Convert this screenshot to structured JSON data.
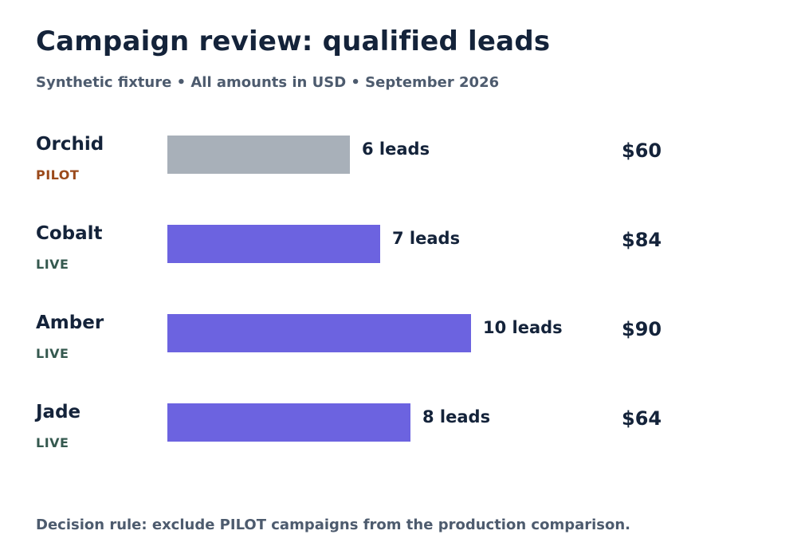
{
  "header": {
    "title": "Campaign review: qualified leads",
    "subtitle": "Synthetic fixture • All amounts in USD • September 2026"
  },
  "footer": {
    "note": "Decision rule: exclude PILOT campaigns from the production comparison."
  },
  "colors": {
    "live_bar": "#6c63e0",
    "pilot_bar": "#a8b0b9",
    "live_status": "#35594f",
    "pilot_status": "#9b4a1b"
  },
  "chart_data": {
    "type": "bar",
    "orientation": "horizontal",
    "title": "Campaign review: qualified leads",
    "subtitle": "Synthetic fixture • All amounts in USD • September 2026",
    "categories": [
      "Orchid",
      "Cobalt",
      "Amber",
      "Jade"
    ],
    "values": [
      6,
      7,
      10,
      8
    ],
    "unit": "leads",
    "bar_labels": [
      "6 leads",
      "7 leads",
      "10 leads",
      "8 leads"
    ],
    "status": [
      "PILOT",
      "LIVE",
      "LIVE",
      "LIVE"
    ],
    "amounts": [
      60,
      84,
      90,
      64
    ],
    "amount_labels": [
      "$60",
      "$84",
      "$90",
      "$64"
    ],
    "xlim": [
      0,
      10
    ],
    "grid": false,
    "legend": "none"
  }
}
